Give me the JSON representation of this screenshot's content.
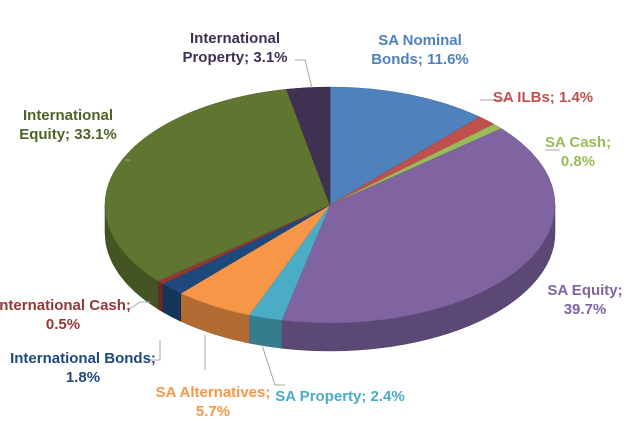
{
  "chart_data": {
    "type": "pie3d",
    "categories": [
      "SA Nominal Bonds;",
      "SA ILBs;",
      "SA Cash;",
      "SA Equity;",
      "SA Property;",
      "SA Alternatives;",
      "International Bonds;",
      "International Cash;",
      "International Equity;",
      "International Property;"
    ],
    "values": [
      11.6,
      1.4,
      0.8,
      39.7,
      2.4,
      5.7,
      1.8,
      0.5,
      33.1,
      3.1
    ],
    "value_labels": [
      "11.6%",
      "1.4%",
      "0.8%",
      "39.7%",
      "2.4%",
      "5.7%",
      "1.8%",
      "0.5%",
      "33.1%",
      "3.1%"
    ],
    "colors": [
      "#4f81bd",
      "#c0504d",
      "#9bbb59",
      "#8064a2",
      "#4bacc6",
      "#f79646",
      "#1f497d",
      "#953735",
      "#5f7530",
      "#403152"
    ]
  }
}
